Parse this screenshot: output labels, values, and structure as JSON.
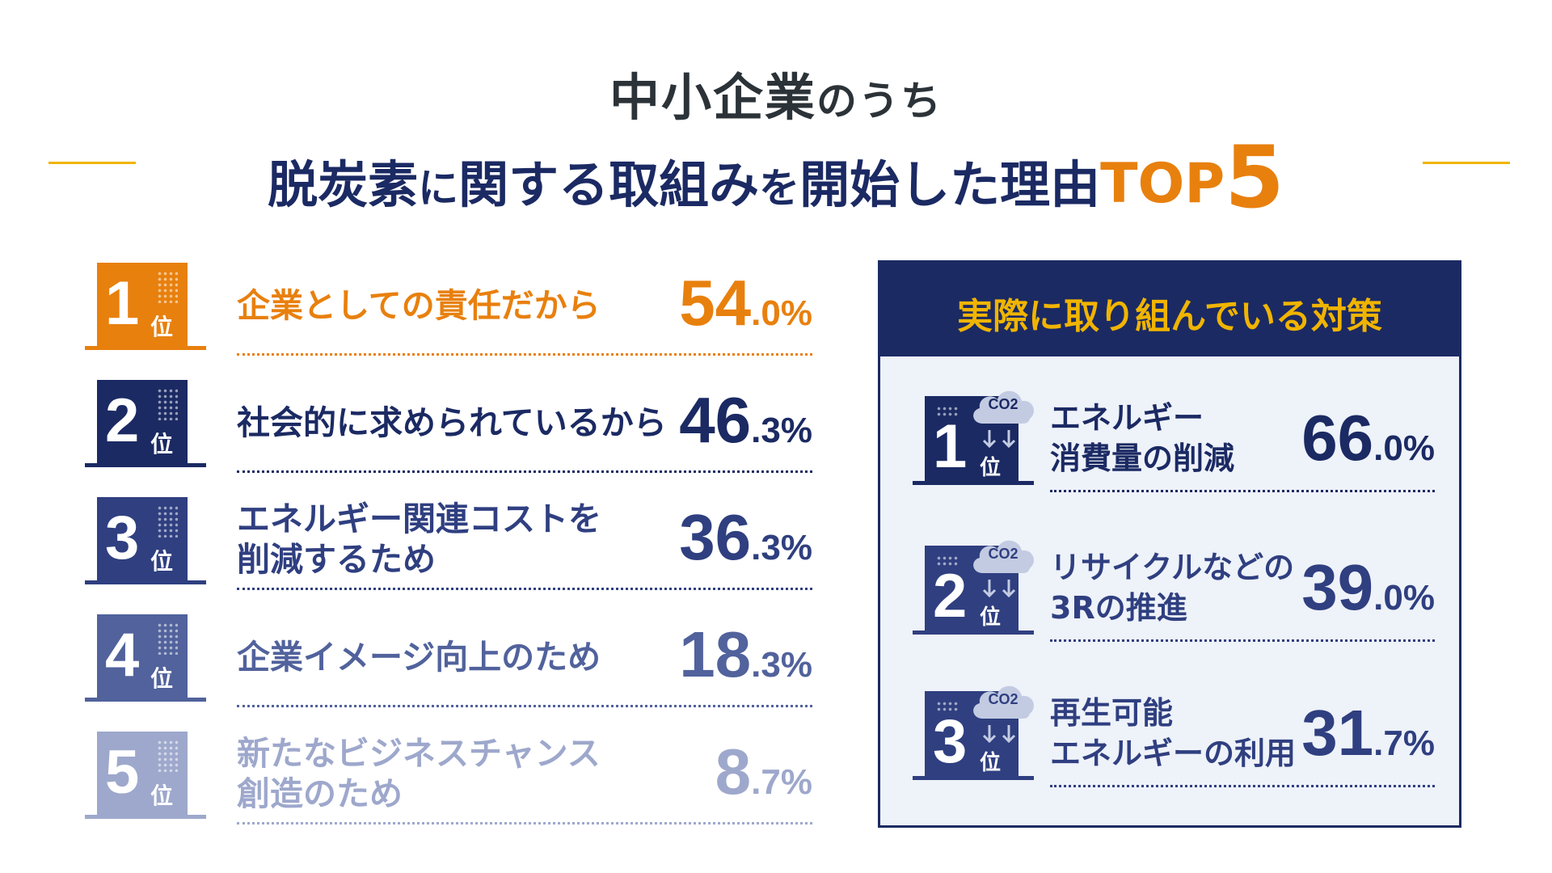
{
  "header": {
    "line1_main": "中小企業",
    "line1_suffix": "のうち",
    "line2": [
      {
        "text": "脱炭素",
        "cls": ""
      },
      {
        "text": "に",
        "cls": "small"
      },
      {
        "text": "関する",
        "cls": ""
      },
      {
        "text": "取組み",
        "cls": ""
      },
      {
        "text": "を",
        "cls": "small"
      },
      {
        "text": "開始した理由",
        "cls": ""
      },
      {
        "text": "TOP",
        "cls": "top5"
      },
      {
        "text": "5",
        "cls": "five"
      }
    ]
  },
  "colors": {
    "rank1": "#e8800e",
    "rank2": "#1b2a63",
    "rank3": "#2f3f80",
    "rank4": "#51629c",
    "rank5": "#9ea8cc",
    "accent_line": "#f0b400"
  },
  "chart_data": {
    "type": "bar",
    "unit": "%",
    "ranking": [
      {
        "rank": "1",
        "pos": "位",
        "label_lines": [
          "企業としての責任だから"
        ],
        "value_int": "54",
        "value_dec": ".0%",
        "value": 54.0
      },
      {
        "rank": "2",
        "pos": "位",
        "label_lines": [
          "社会的に求められているから"
        ],
        "value_int": "46",
        "value_dec": ".3%",
        "value": 46.3
      },
      {
        "rank": "3",
        "pos": "位",
        "label_lines": [
          "エネルギー関連コストを",
          "削減するため"
        ],
        "value_int": "36",
        "value_dec": ".3%",
        "value": 36.3
      },
      {
        "rank": "4",
        "pos": "位",
        "label_lines": [
          "企業イメージ向上のため"
        ],
        "value_int": "18",
        "value_dec": ".3%",
        "value": 18.3
      },
      {
        "rank": "5",
        "pos": "位",
        "label_lines": [
          "新たなビジネスチャンス",
          "創造のため"
        ],
        "value_int": "8",
        "value_dec": ".7%",
        "value": 8.7
      }
    ]
  },
  "measures": {
    "title": "実際に取り組んでいる対策",
    "co2_label": "CO2",
    "items": [
      {
        "rank": "1",
        "pos": "位",
        "label_lines": [
          "エネルギー",
          "消費量の削減"
        ],
        "value_int": "66",
        "value_dec": ".0%",
        "value": 66.0
      },
      {
        "rank": "2",
        "pos": "位",
        "label_lines": [
          "リサイクルなどの",
          "3Rの推進"
        ],
        "value_int": "39",
        "value_dec": ".0%",
        "value": 39.0
      },
      {
        "rank": "3",
        "pos": "位",
        "label_lines": [
          "再生可能",
          "エネルギーの利用"
        ],
        "value_int": "31",
        "value_dec": ".7%",
        "value": 31.7
      }
    ]
  }
}
